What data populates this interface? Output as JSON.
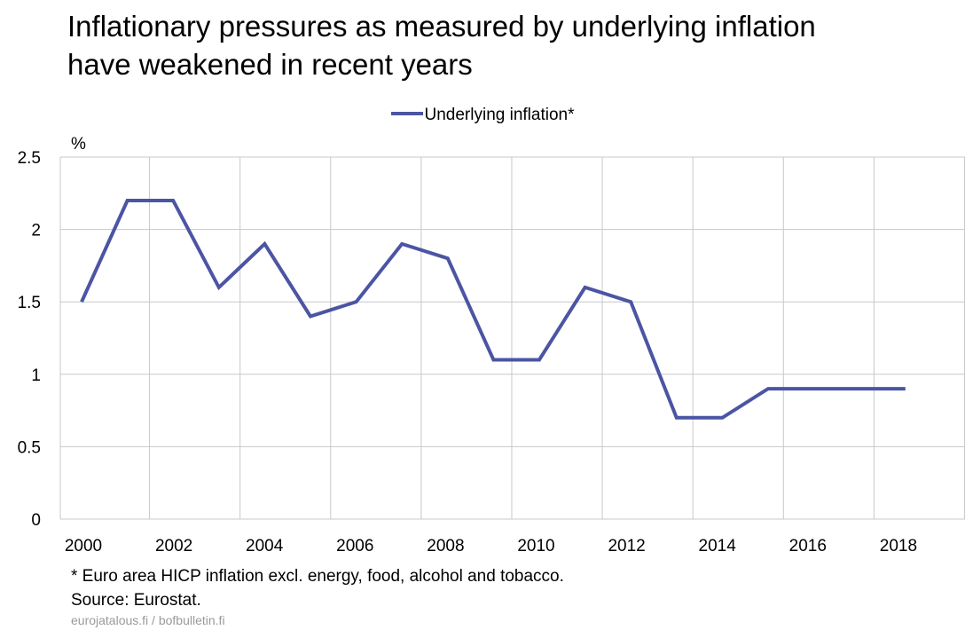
{
  "title_line1": "Inflationary pressures as measured by underlying inflation",
  "title_line2": "have weakened in recent years",
  "footnote": "* Euro area HICP inflation excl. energy, food, alcohol and tobacco.",
  "source": "Source: Eurostat.",
  "credit": "eurojatalous.fi / bofbulletin.fi",
  "chart_data": {
    "type": "line",
    "title": "Inflationary pressures as measured by underlying inflation have weakened in recent years",
    "ylabel": "%",
    "xlabel": "",
    "ylim": [
      0,
      2.5
    ],
    "yticks": [
      "0",
      "0.5",
      "1",
      "1.5",
      "2",
      "2.5"
    ],
    "yticks_values": [
      0,
      0.5,
      1,
      1.5,
      2,
      2.5
    ],
    "xticks": [
      "2000",
      "2002",
      "2004",
      "2006",
      "2008",
      "2010",
      "2012",
      "2014",
      "2016",
      "2018"
    ],
    "grid": true,
    "legend_position": "top-center",
    "line_color": "#4b55a3",
    "series": [
      {
        "name": "Underlying inflation*",
        "x": [
          2000,
          2001,
          2002,
          2003,
          2004,
          2005,
          2006,
          2007,
          2008,
          2009,
          2010,
          2011,
          2012,
          2013,
          2014,
          2015,
          2016,
          2017,
          2018
        ],
        "values": [
          1.5,
          2.2,
          2.2,
          1.6,
          1.9,
          1.4,
          1.5,
          1.9,
          1.8,
          1.1,
          1.1,
          1.6,
          1.5,
          0.7,
          0.7,
          0.9,
          0.9,
          0.9,
          0.9
        ]
      }
    ]
  }
}
